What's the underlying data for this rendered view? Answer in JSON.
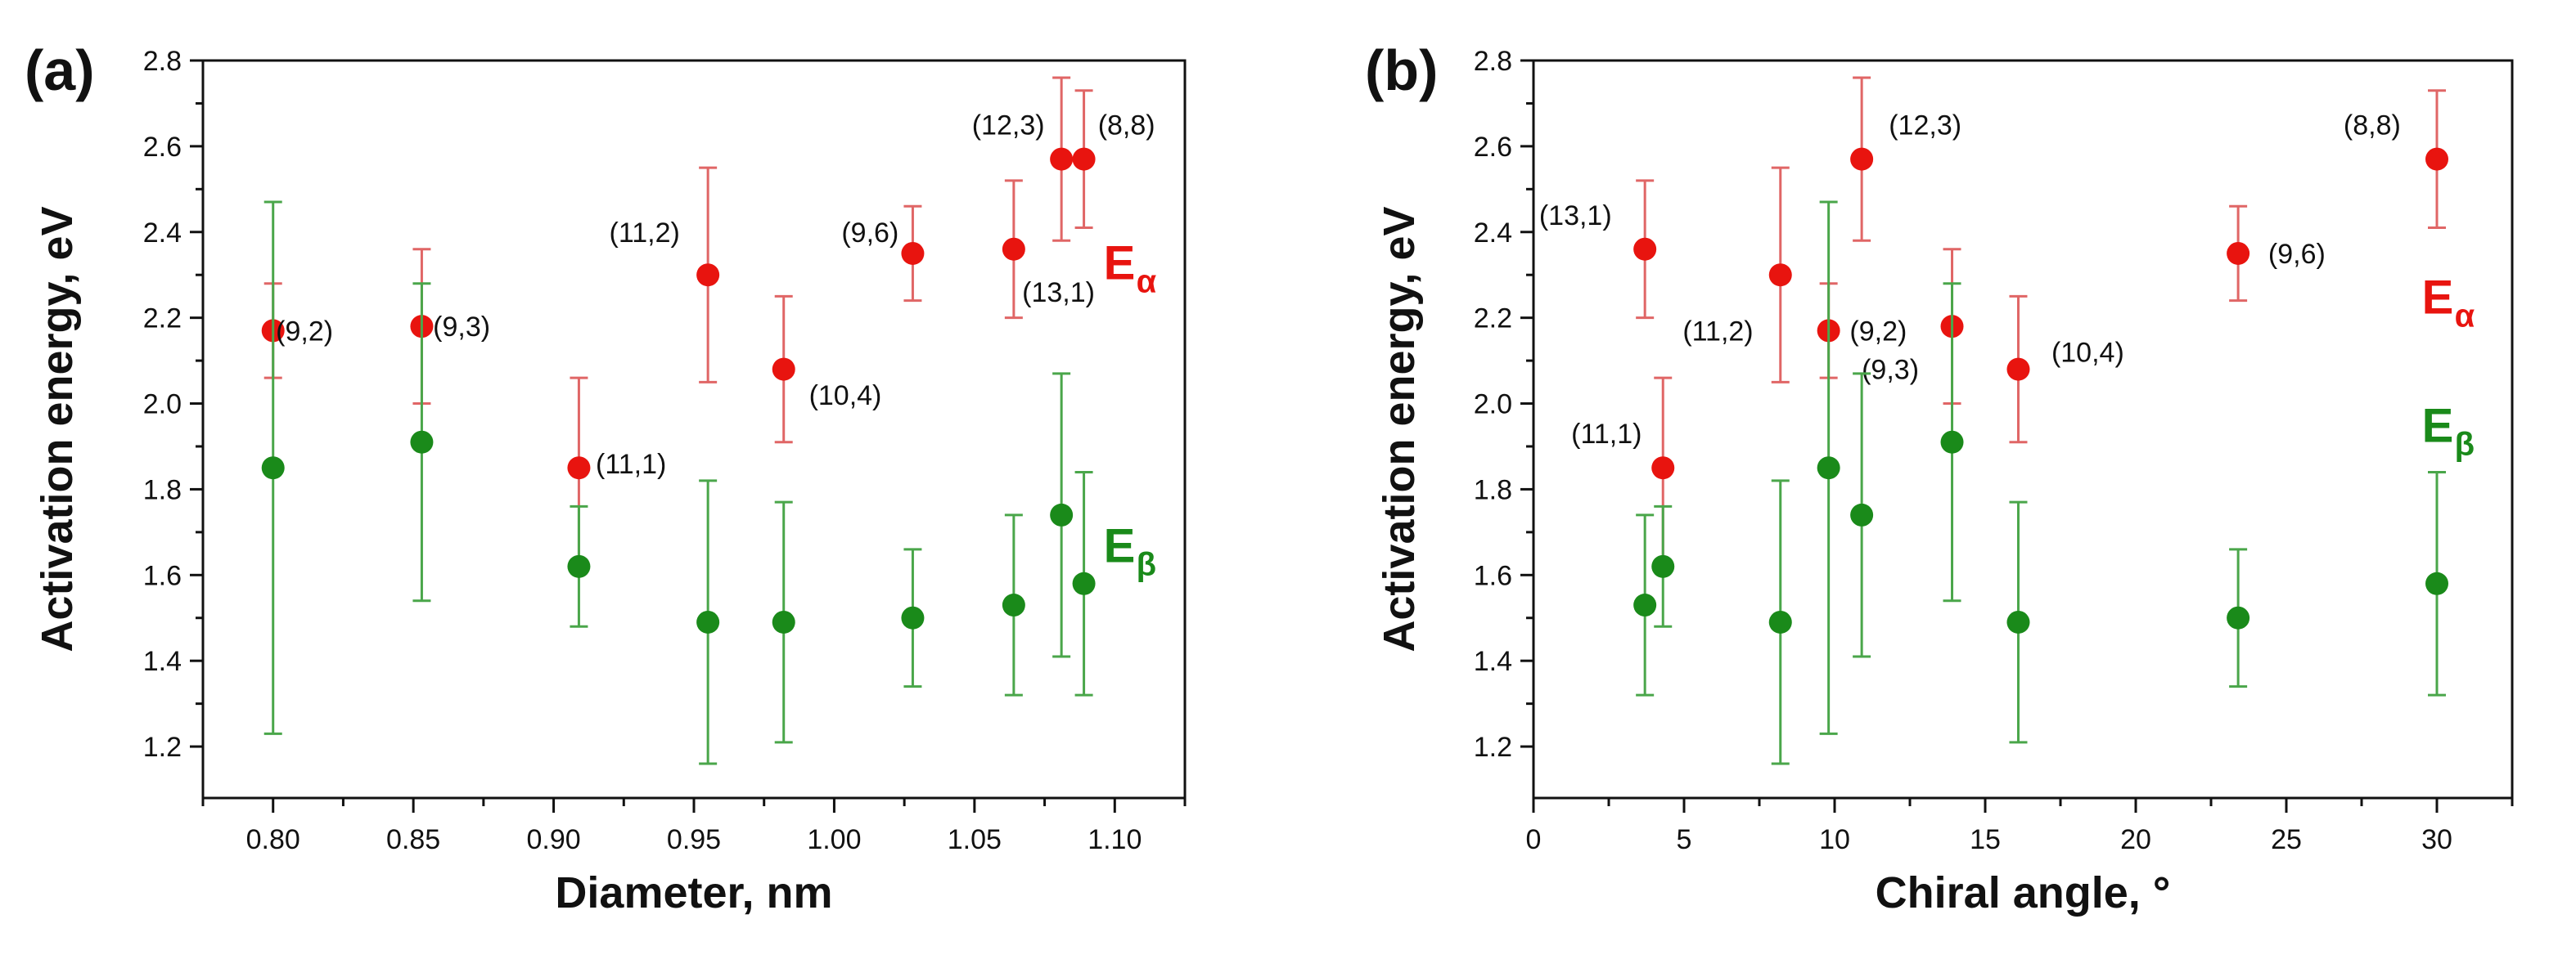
{
  "colors": {
    "alpha": "#e8140f",
    "beta": "#1a8a1a",
    "axis": "#111111",
    "alpha_err": "#e06666",
    "beta_err": "#4aa64a"
  },
  "chart_data": [
    {
      "type": "scatter",
      "panel_label": "(a)",
      "xlabel": "Diameter, nm",
      "ylabel": "Activation energy, eV",
      "xlim": [
        0.775,
        1.125
      ],
      "ylim": [
        1.08,
        2.8
      ],
      "xticks": [
        0.8,
        0.85,
        0.9,
        0.95,
        1.0,
        1.05,
        1.1
      ],
      "xtick_labels": [
        "0.80",
        "0.85",
        "0.90",
        "0.95",
        "1.00",
        "1.05",
        "1.10"
      ],
      "xminor": [
        0.775,
        0.825,
        0.875,
        0.925,
        0.975,
        1.025,
        1.075,
        1.125
      ],
      "yticks": [
        1.2,
        1.4,
        1.6,
        1.8,
        2.0,
        2.2,
        2.4,
        2.6,
        2.8
      ],
      "ytick_labels": [
        "1.2",
        "1.4",
        "1.6",
        "1.8",
        "2.0",
        "2.2",
        "2.4",
        "2.6",
        "2.8"
      ],
      "series_labels": [
        {
          "key": "alpha",
          "main": "E",
          "sub": "α",
          "x": 1.096,
          "y": 2.29
        },
        {
          "key": "beta",
          "main": "E",
          "sub": "β",
          "x": 1.096,
          "y": 1.63
        }
      ],
      "series": [
        {
          "name": "Eα",
          "key": "alpha",
          "points": [
            {
              "x": 0.8,
              "y": 2.17,
              "lo": 2.06,
              "hi": 2.28,
              "label": "(9,2)",
              "lx": 0.801,
              "ly": 2.17,
              "anchor": "start"
            },
            {
              "x": 0.853,
              "y": 2.18,
              "lo": 2.0,
              "hi": 2.36,
              "label": "(9,3)",
              "lx": 0.857,
              "ly": 2.18,
              "anchor": "start"
            },
            {
              "x": 0.909,
              "y": 1.85,
              "lo": 1.63,
              "hi": 2.06,
              "label": "(11,1)",
              "lx": 0.915,
              "ly": 1.86,
              "anchor": "start"
            },
            {
              "x": 0.955,
              "y": 2.3,
              "lo": 2.05,
              "hi": 2.55,
              "label": "(11,2)",
              "lx": 0.945,
              "ly": 2.4,
              "anchor": "end"
            },
            {
              "x": 0.982,
              "y": 2.08,
              "lo": 1.91,
              "hi": 2.25,
              "label": "(10,4)",
              "lx": 0.991,
              "ly": 2.02,
              "anchor": "start"
            },
            {
              "x": 1.028,
              "y": 2.35,
              "lo": 2.24,
              "hi": 2.46,
              "label": "(9,6)",
              "lx": 1.023,
              "ly": 2.4,
              "anchor": "end"
            },
            {
              "x": 1.064,
              "y": 2.36,
              "lo": 2.2,
              "hi": 2.52,
              "label": "(13,1)",
              "lx": 1.067,
              "ly": 2.26,
              "anchor": "start"
            },
            {
              "x": 1.081,
              "y": 2.57,
              "lo": 2.38,
              "hi": 2.76,
              "label": "(12,3)",
              "lx": 1.075,
              "ly": 2.65,
              "anchor": "end"
            },
            {
              "x": 1.089,
              "y": 2.57,
              "lo": 2.41,
              "hi": 2.73,
              "label": "(8,8)",
              "lx": 1.094,
              "ly": 2.65,
              "anchor": "start"
            }
          ]
        },
        {
          "name": "Eβ",
          "key": "beta",
          "points": [
            {
              "x": 0.8,
              "y": 1.85,
              "lo": 1.23,
              "hi": 2.47
            },
            {
              "x": 0.853,
              "y": 1.91,
              "lo": 1.54,
              "hi": 2.28
            },
            {
              "x": 0.909,
              "y": 1.62,
              "lo": 1.48,
              "hi": 1.76
            },
            {
              "x": 0.955,
              "y": 1.49,
              "lo": 1.16,
              "hi": 1.82
            },
            {
              "x": 0.982,
              "y": 1.49,
              "lo": 1.21,
              "hi": 1.77
            },
            {
              "x": 1.028,
              "y": 1.5,
              "lo": 1.34,
              "hi": 1.66
            },
            {
              "x": 1.064,
              "y": 1.53,
              "lo": 1.32,
              "hi": 1.74
            },
            {
              "x": 1.081,
              "y": 1.74,
              "lo": 1.41,
              "hi": 2.07
            },
            {
              "x": 1.089,
              "y": 1.58,
              "lo": 1.32,
              "hi": 1.84
            }
          ]
        }
      ]
    },
    {
      "type": "scatter",
      "panel_label": "(b)",
      "xlabel": "Chiral angle, °",
      "ylabel": "Activation energy, eV",
      "xlim": [
        0,
        32.5
      ],
      "ylim": [
        1.08,
        2.8
      ],
      "xticks": [
        0,
        5,
        10,
        15,
        20,
        25,
        30
      ],
      "xtick_labels": [
        "0",
        "5",
        "10",
        "15",
        "20",
        "25",
        "30"
      ],
      "xminor": [
        2.5,
        7.5,
        12.5,
        17.5,
        22.5,
        27.5,
        32.5
      ],
      "yticks": [
        1.2,
        1.4,
        1.6,
        1.8,
        2.0,
        2.2,
        2.4,
        2.6,
        2.8
      ],
      "ytick_labels": [
        "1.2",
        "1.4",
        "1.6",
        "1.8",
        "2.0",
        "2.2",
        "2.4",
        "2.6",
        "2.8"
      ],
      "series_labels": [
        {
          "key": "alpha",
          "main": "E",
          "sub": "α",
          "x": 29.5,
          "y": 2.21
        },
        {
          "key": "beta",
          "main": "E",
          "sub": "β",
          "x": 29.5,
          "y": 1.91
        }
      ],
      "series": [
        {
          "name": "Eα",
          "key": "alpha",
          "points": [
            {
              "x": 3.7,
              "y": 2.36,
              "lo": 2.2,
              "hi": 2.52,
              "label": "(13,1)",
              "lx": 2.6,
              "ly": 2.44,
              "anchor": "end"
            },
            {
              "x": 4.3,
              "y": 1.85,
              "lo": 1.63,
              "hi": 2.06,
              "label": "(11,1)",
              "lx": 3.6,
              "ly": 1.93,
              "anchor": "end"
            },
            {
              "x": 8.2,
              "y": 2.3,
              "lo": 2.05,
              "hi": 2.55,
              "label": "(11,2)",
              "lx": 7.3,
              "ly": 2.17,
              "anchor": "end"
            },
            {
              "x": 9.8,
              "y": 2.17,
              "lo": 2.06,
              "hi": 2.28,
              "label": "(9,2)",
              "lx": 10.5,
              "ly": 2.17,
              "anchor": "start"
            },
            {
              "x": 10.9,
              "y": 2.57,
              "lo": 2.38,
              "hi": 2.76,
              "label": "(12,3)",
              "lx": 11.8,
              "ly": 2.65,
              "anchor": "start"
            },
            {
              "x": 13.9,
              "y": 2.18,
              "lo": 2.0,
              "hi": 2.36,
              "label": "(9,3)",
              "lx": 12.8,
              "ly": 2.08,
              "anchor": "end"
            },
            {
              "x": 16.1,
              "y": 2.08,
              "lo": 1.91,
              "hi": 2.25,
              "label": "(10,4)",
              "lx": 17.2,
              "ly": 2.12,
              "anchor": "start"
            },
            {
              "x": 23.4,
              "y": 2.35,
              "lo": 2.24,
              "hi": 2.46,
              "label": "(9,6)",
              "lx": 24.4,
              "ly": 2.35,
              "anchor": "start"
            },
            {
              "x": 30.0,
              "y": 2.57,
              "lo": 2.41,
              "hi": 2.73,
              "label": "(8,8)",
              "lx": 28.8,
              "ly": 2.65,
              "anchor": "end"
            }
          ]
        },
        {
          "name": "Eβ",
          "key": "beta",
          "points": [
            {
              "x": 3.7,
              "y": 1.53,
              "lo": 1.32,
              "hi": 1.74
            },
            {
              "x": 4.3,
              "y": 1.62,
              "lo": 1.48,
              "hi": 1.76
            },
            {
              "x": 8.2,
              "y": 1.49,
              "lo": 1.16,
              "hi": 1.82
            },
            {
              "x": 9.8,
              "y": 1.85,
              "lo": 1.23,
              "hi": 2.47
            },
            {
              "x": 10.9,
              "y": 1.74,
              "lo": 1.41,
              "hi": 2.07
            },
            {
              "x": 13.9,
              "y": 1.91,
              "lo": 1.54,
              "hi": 2.28
            },
            {
              "x": 16.1,
              "y": 1.49,
              "lo": 1.21,
              "hi": 1.77
            },
            {
              "x": 23.4,
              "y": 1.5,
              "lo": 1.34,
              "hi": 1.66
            },
            {
              "x": 30.0,
              "y": 1.58,
              "lo": 1.32,
              "hi": 1.84
            }
          ]
        }
      ]
    }
  ]
}
